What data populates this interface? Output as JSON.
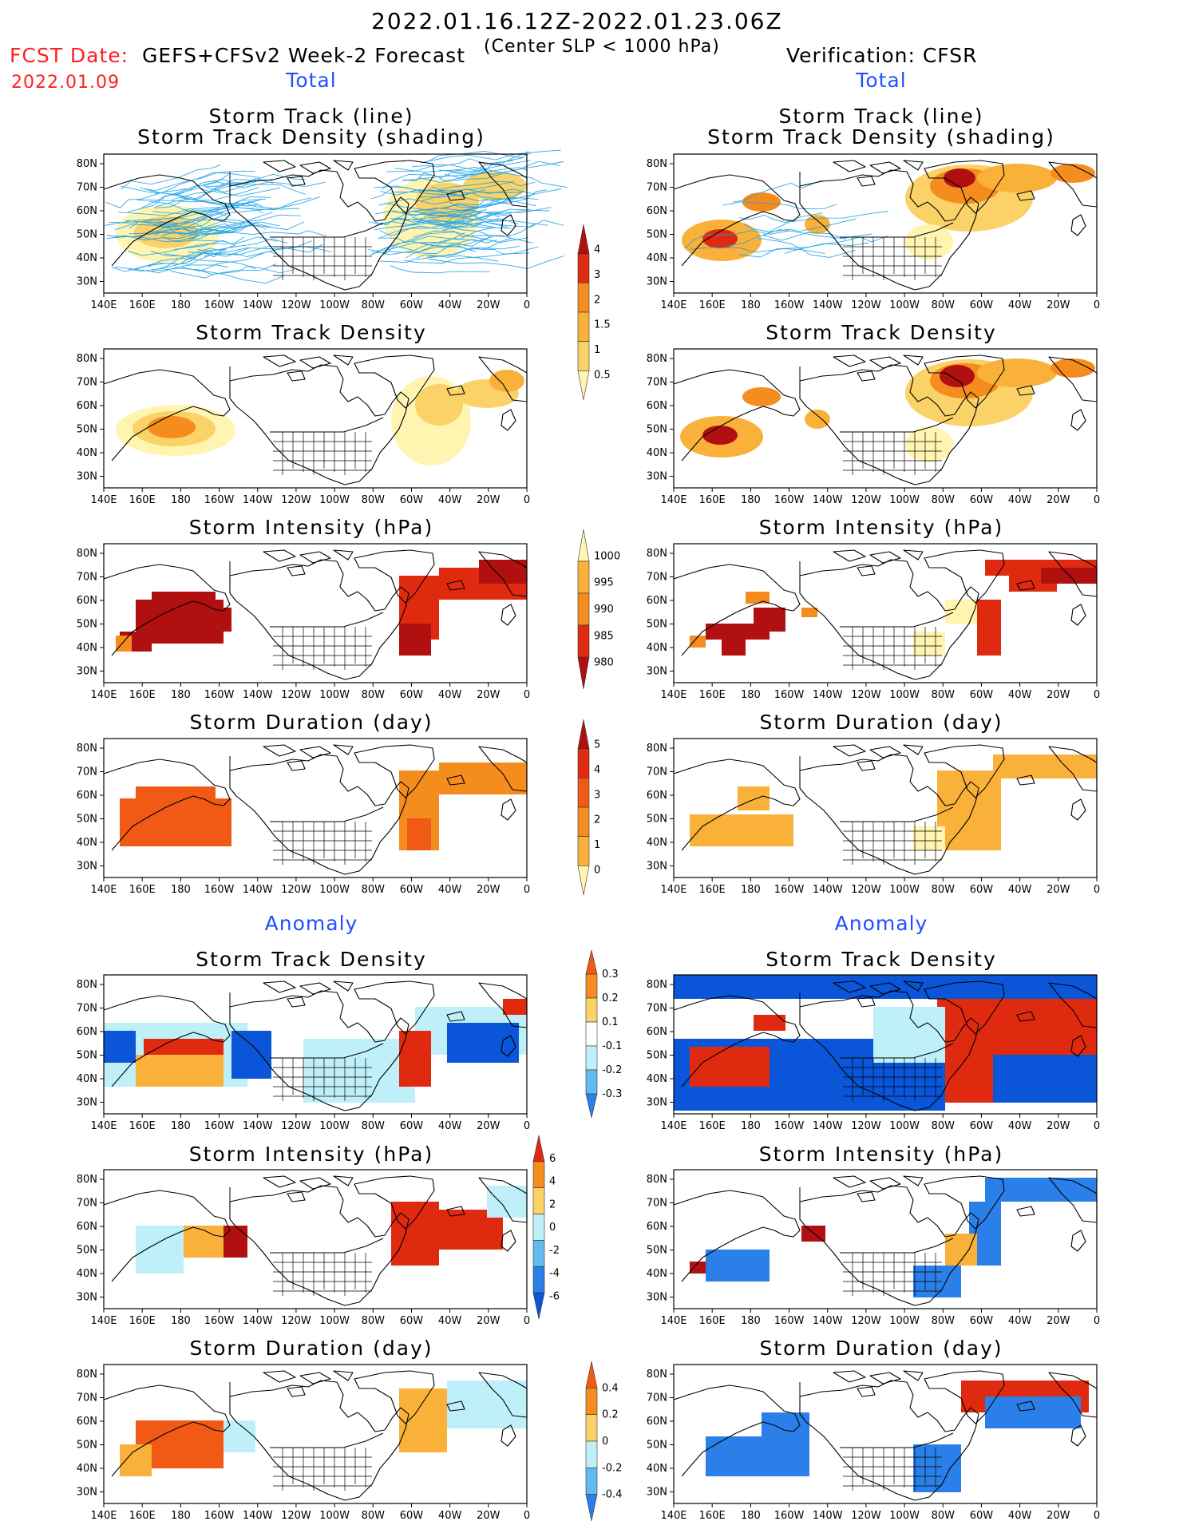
{
  "header": {
    "period": "2022.01.16.12Z-2022.01.23.06Z",
    "fcst_label": "FCST Date:",
    "model": "GEFS+CFSv2 Week-2 Forecast",
    "criterion": "(Center SLP < 1000 hPa)",
    "fcst_date": "2022.01.09",
    "verification": "Verification: CFSR"
  },
  "sections": {
    "total": "Total",
    "anomaly": "Anomaly"
  },
  "panel_titles": {
    "track_line": "Storm Track (line)",
    "track_shading": "Storm Track Density (shading)",
    "density": "Storm Track Density",
    "intensity": "Storm Intensity (hPa)",
    "duration": "Storm Duration (day)"
  },
  "axes": {
    "lat_labels": [
      "80N",
      "70N",
      "60N",
      "50N",
      "40N",
      "30N"
    ],
    "lon_labels": [
      "140E",
      "160E",
      "180",
      "160W",
      "140W",
      "120W",
      "100W",
      "80W",
      "60W",
      "40W",
      "20W",
      "0"
    ]
  },
  "colors": {
    "light_yellow": "#fff4b0",
    "yellow": "#fad268",
    "light_orange": "#f9b13a",
    "orange": "#f58c1e",
    "dark_orange": "#f05a14",
    "red": "#e02a10",
    "dark_red": "#b01010",
    "light_blue": "#bfeff9",
    "mid_blue": "#61bbf0",
    "blue": "#2a7fe8",
    "dark_blue": "#0a55d8",
    "track_line": "#1aa0e6"
  },
  "colorbars": [
    {
      "labels": [
        "4",
        "3",
        "2",
        "1.5",
        "1",
        "0.5"
      ]
    },
    {
      "labels": [
        "1000",
        "995",
        "990",
        "985",
        "980"
      ]
    },
    {
      "labels": [
        "5",
        "4",
        "3",
        "2",
        "1",
        "0"
      ]
    },
    {
      "labels": [
        "0.3",
        "0.2",
        "0.1",
        "-0.1",
        "-0.2",
        "-0.3"
      ]
    },
    {
      "labels": [
        "6",
        "4",
        "2",
        "0",
        "-2",
        "-4",
        "-6"
      ]
    },
    {
      "labels": [
        "0.4",
        "0.2",
        "0",
        "-0.2",
        "-0.4"
      ]
    }
  ]
}
